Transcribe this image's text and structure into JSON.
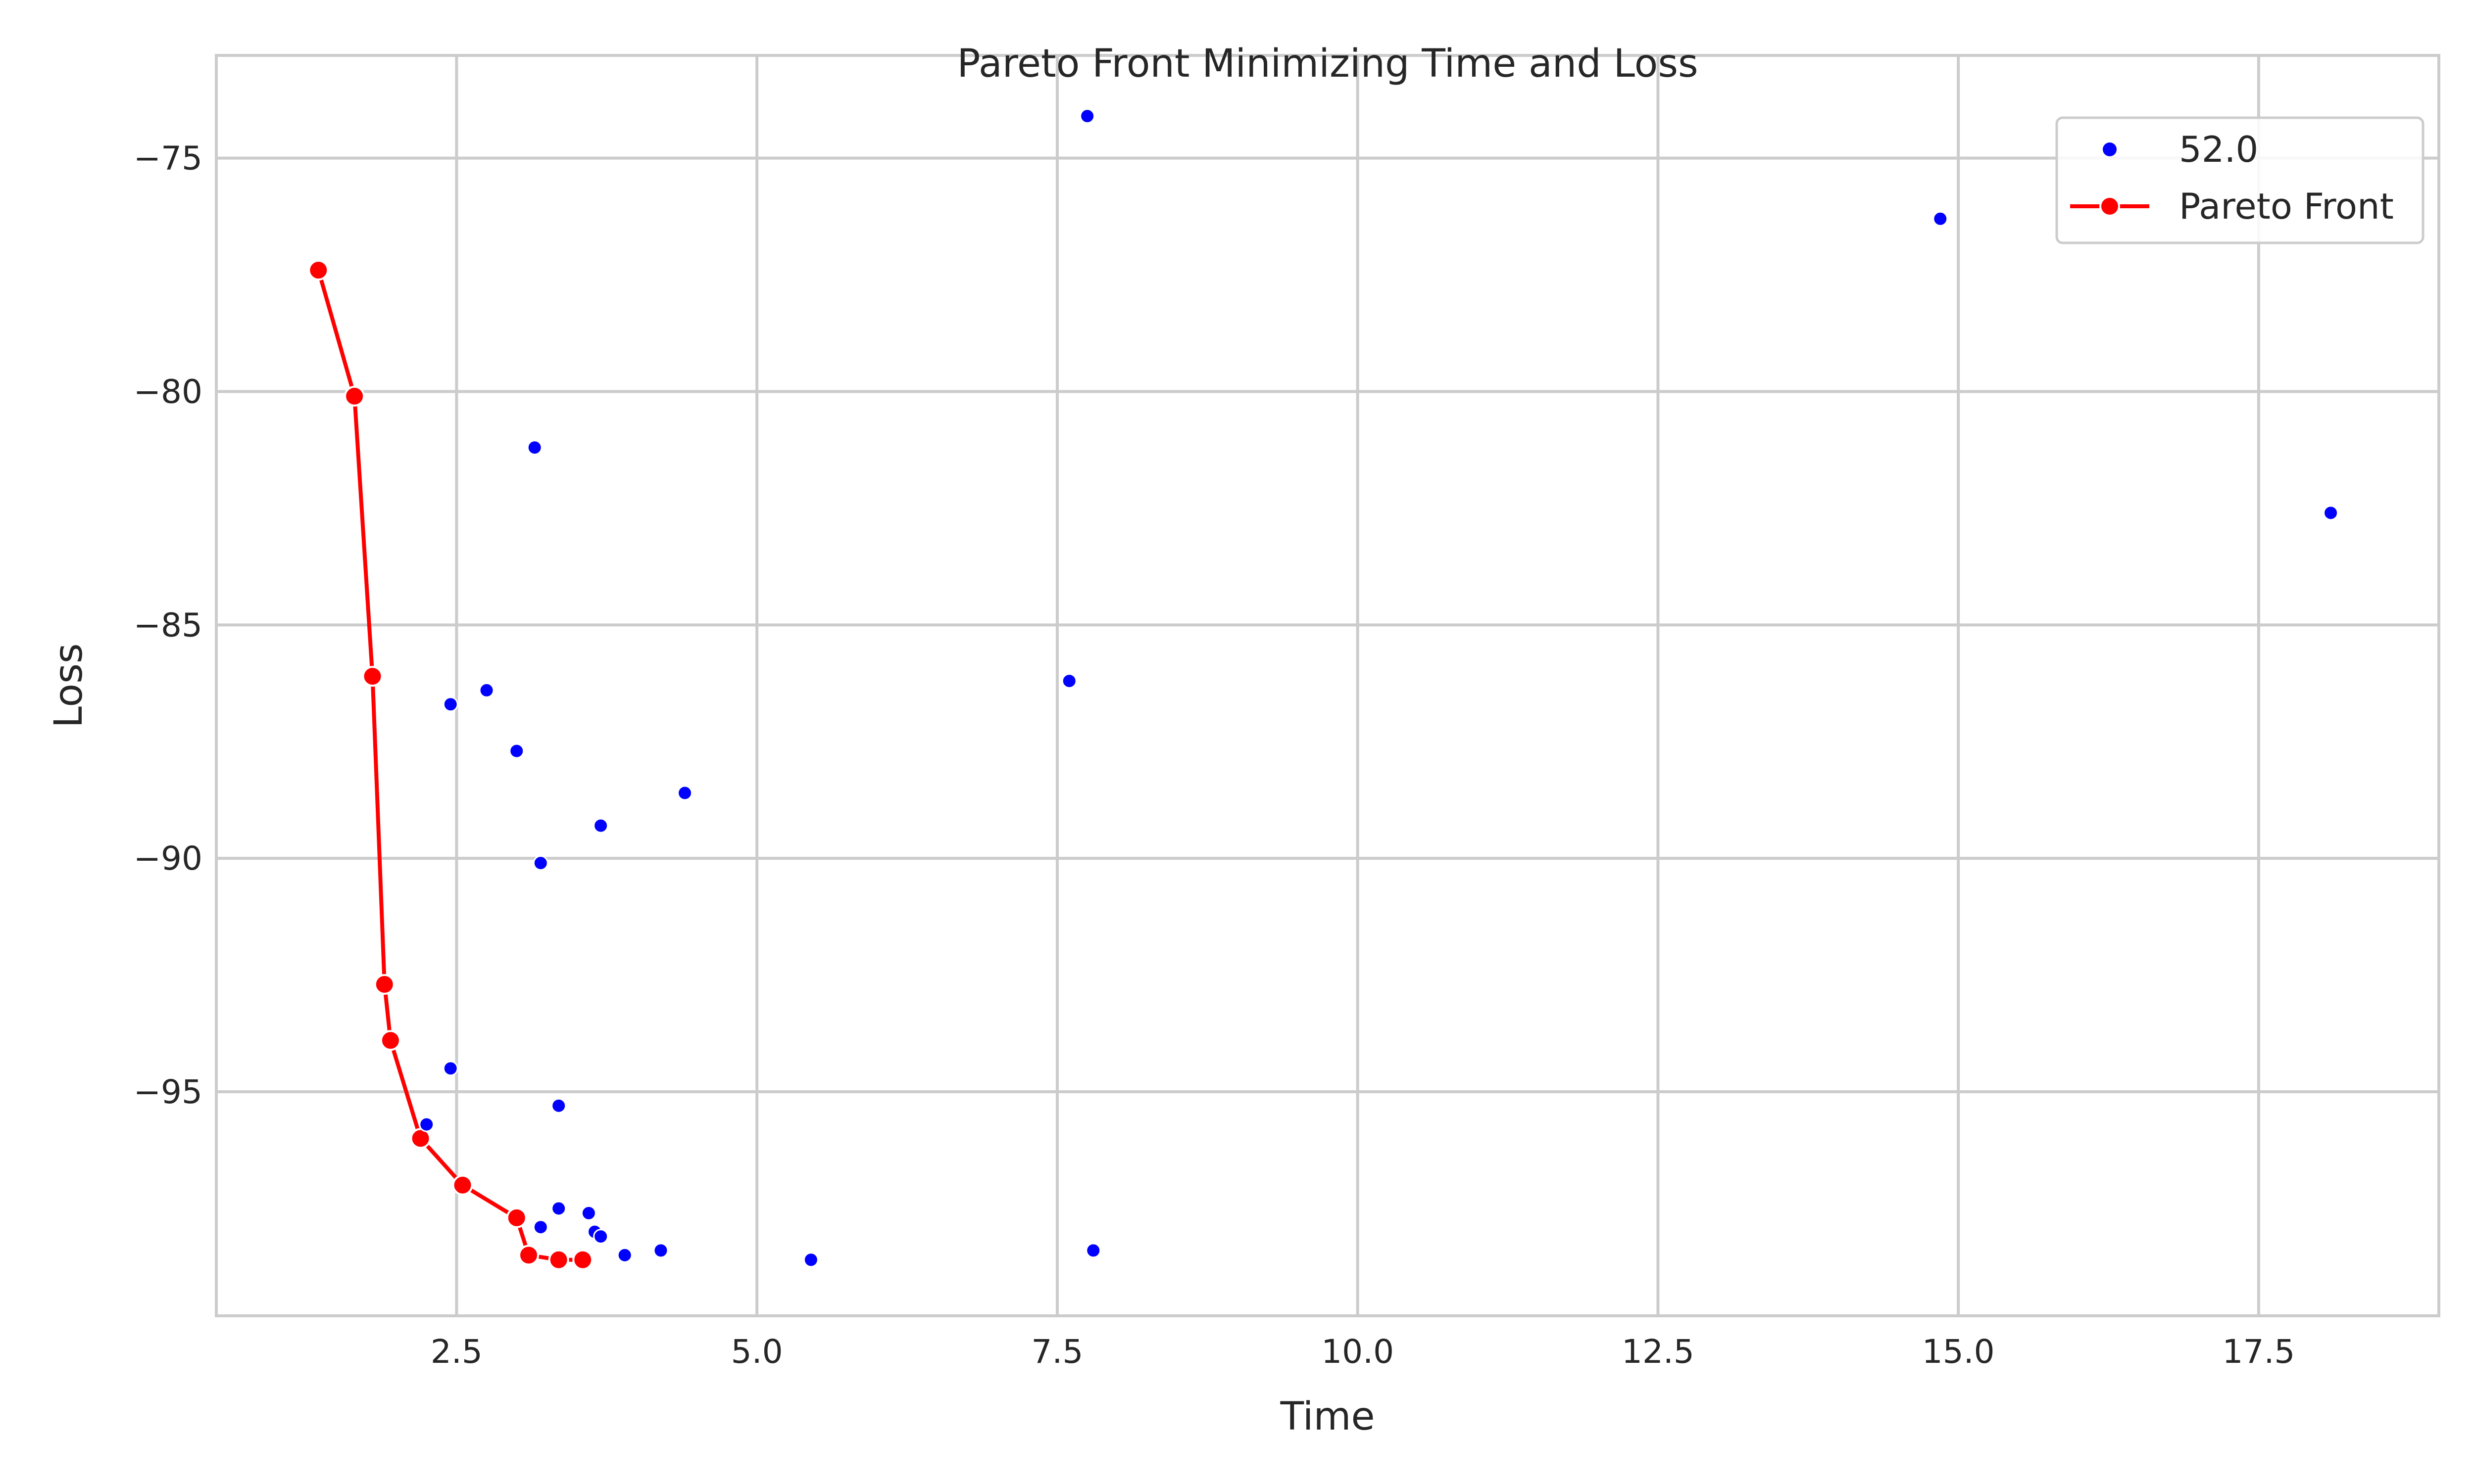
{
  "chart_data": {
    "type": "scatter",
    "title": "Pareto Front Minimizing Time and Loss",
    "xlabel": "Time",
    "ylabel": "Loss",
    "xlim": [
      0.5,
      19.0
    ],
    "ylim": [
      -99.8,
      -72.8
    ],
    "xticks": [
      2.5,
      5.0,
      7.5,
      10.0,
      12.5,
      15.0,
      17.5
    ],
    "xtick_labels": [
      "2.5",
      "5.0",
      "7.5",
      "10.0",
      "12.5",
      "15.0",
      "17.5"
    ],
    "yticks": [
      -75,
      -80,
      -85,
      -90,
      -95
    ],
    "ytick_labels": [
      "−75",
      "−80",
      "−85",
      "−90",
      "−95"
    ],
    "grid": true,
    "legend_position": "top-right",
    "series": [
      {
        "name": "52.0",
        "style": "markers",
        "color": "#0000ff",
        "points": [
          {
            "x": 7.75,
            "y": -74.1
          },
          {
            "x": 14.85,
            "y": -76.3
          },
          {
            "x": 18.1,
            "y": -82.6
          },
          {
            "x": 3.15,
            "y": -81.2
          },
          {
            "x": 7.6,
            "y": -86.2
          },
          {
            "x": 2.75,
            "y": -86.4
          },
          {
            "x": 2.45,
            "y": -86.7
          },
          {
            "x": 3.0,
            "y": -87.7
          },
          {
            "x": 4.4,
            "y": -88.6
          },
          {
            "x": 3.7,
            "y": -89.3
          },
          {
            "x": 3.2,
            "y": -90.1
          },
          {
            "x": 2.45,
            "y": -94.5
          },
          {
            "x": 3.35,
            "y": -95.3
          },
          {
            "x": 2.25,
            "y": -95.7
          },
          {
            "x": 3.35,
            "y": -97.5
          },
          {
            "x": 3.6,
            "y": -97.6
          },
          {
            "x": 3.2,
            "y": -97.9
          },
          {
            "x": 3.65,
            "y": -98.0
          },
          {
            "x": 3.7,
            "y": -98.1
          },
          {
            "x": 3.9,
            "y": -98.5
          },
          {
            "x": 4.2,
            "y": -98.4
          },
          {
            "x": 7.8,
            "y": -98.4
          },
          {
            "x": 5.45,
            "y": -98.6
          }
        ]
      },
      {
        "name": "Pareto Front",
        "style": "line-markers",
        "color": "#ff0000",
        "points": [
          {
            "x": 1.35,
            "y": -77.4
          },
          {
            "x": 1.65,
            "y": -80.1
          },
          {
            "x": 1.8,
            "y": -86.1
          },
          {
            "x": 1.9,
            "y": -92.7
          },
          {
            "x": 1.95,
            "y": -93.9
          },
          {
            "x": 2.2,
            "y": -96.0
          },
          {
            "x": 2.55,
            "y": -97.0
          },
          {
            "x": 3.0,
            "y": -97.7
          },
          {
            "x": 3.1,
            "y": -98.5
          },
          {
            "x": 3.35,
            "y": -98.6
          },
          {
            "x": 3.55,
            "y": -98.6
          }
        ]
      }
    ]
  }
}
